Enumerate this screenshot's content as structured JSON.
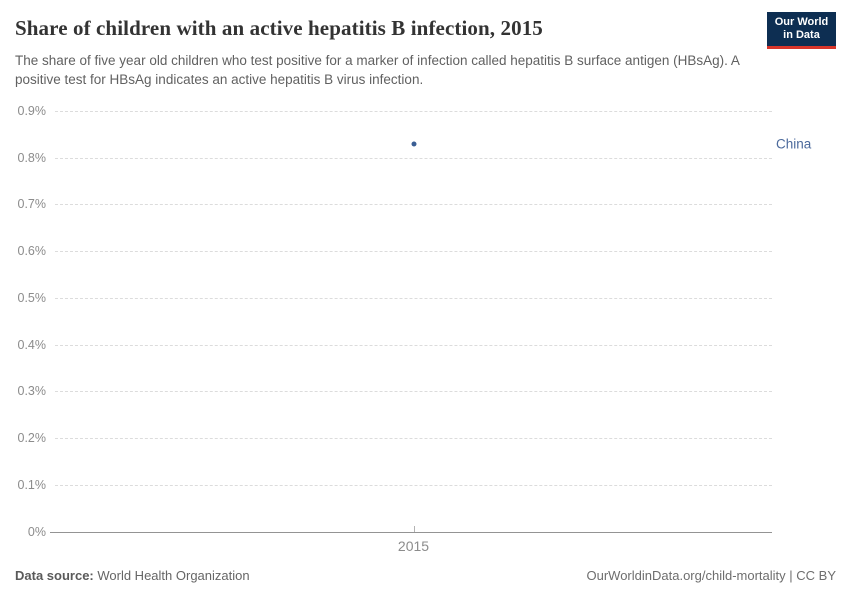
{
  "header": {
    "title": "Share of children with an active hepatitis B infection, 2015",
    "subtitle": "The share of five year old children who test positive for a marker of infection called hepatitis B surface antigen (HBsAg). A positive test for HBsAg indicates an active hepatitis B virus infection.",
    "logo": {
      "line1": "Our World",
      "line2": "in Data"
    }
  },
  "chart_data": {
    "type": "scatter",
    "title": "Share of children with an active hepatitis B infection, 2015",
    "x": [
      2015
    ],
    "series": [
      {
        "name": "China",
        "values": [
          0.83
        ]
      }
    ],
    "xlabel": "",
    "ylabel": "",
    "ylim": [
      0,
      0.9
    ],
    "yticks": [
      {
        "value": 0,
        "label": "0%"
      },
      {
        "value": 0.1,
        "label": "0.1%"
      },
      {
        "value": 0.2,
        "label": "0.2%"
      },
      {
        "value": 0.3,
        "label": "0.3%"
      },
      {
        "value": 0.4,
        "label": "0.4%"
      },
      {
        "value": 0.5,
        "label": "0.5%"
      },
      {
        "value": 0.6,
        "label": "0.6%"
      },
      {
        "value": 0.7,
        "label": "0.7%"
      },
      {
        "value": 0.8,
        "label": "0.8%"
      },
      {
        "value": 0.9,
        "label": "0.9%"
      }
    ],
    "xticks": [
      {
        "value": 2015,
        "label": "2015"
      }
    ],
    "grid": "horizontal-dashed",
    "legend_position": "entity-label-right",
    "point_color": "#3a5e94",
    "entity_label_color": "#4c6a9c"
  },
  "colors": {
    "logo_background": "#0d2e52",
    "logo_accent": "#d8352a",
    "gridline": "#dcdcdc",
    "axis": "#949494",
    "tick_text": "#8c8c8c"
  },
  "footer": {
    "source_label": "Data source:",
    "source_value": " World Health Organization",
    "credit": "OurWorldinData.org/child-mortality | CC BY"
  }
}
